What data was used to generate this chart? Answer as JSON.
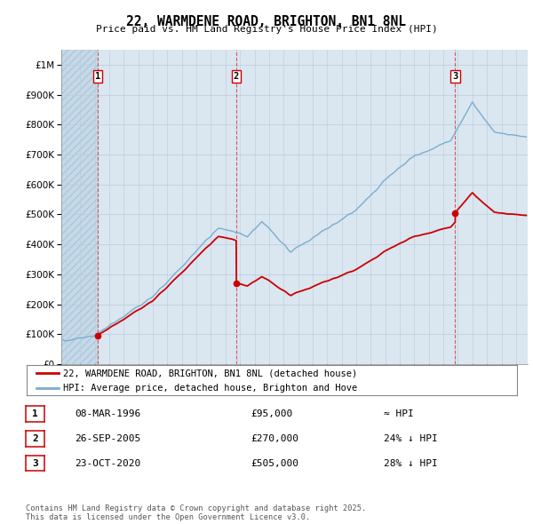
{
  "title": "22, WARMDENE ROAD, BRIGHTON, BN1 8NL",
  "subtitle": "Price paid vs. HM Land Registry's House Price Index (HPI)",
  "background_color": "#dae6f0",
  "hatch_color": "#c5d9e8",
  "sale_color": "#cc0000",
  "hpi_color": "#7aadcf",
  "vline_color": "#cc0000",
  "purchases": [
    {
      "date_num": 1996.19,
      "price": 95000,
      "label": "1"
    },
    {
      "date_num": 2005.74,
      "price": 270000,
      "label": "2"
    },
    {
      "date_num": 2020.81,
      "price": 505000,
      "label": "3"
    }
  ],
  "legend_entries": [
    "22, WARMDENE ROAD, BRIGHTON, BN1 8NL (detached house)",
    "HPI: Average price, detached house, Brighton and Hove"
  ],
  "table_rows": [
    {
      "num": "1",
      "date": "08-MAR-1996",
      "price": "£95,000",
      "rel": "≈ HPI"
    },
    {
      "num": "2",
      "date": "26-SEP-2005",
      "price": "£270,000",
      "rel": "24% ↓ HPI"
    },
    {
      "num": "3",
      "date": "23-OCT-2020",
      "price": "£505,000",
      "rel": "28% ↓ HPI"
    }
  ],
  "footer": "Contains HM Land Registry data © Crown copyright and database right 2025.\nThis data is licensed under the Open Government Licence v3.0.",
  "ylim": [
    0,
    1050000
  ],
  "xlim": [
    1993.7,
    2025.8
  ],
  "yticks": [
    0,
    100000,
    200000,
    300000,
    400000,
    500000,
    600000,
    700000,
    800000,
    900000,
    1000000
  ],
  "ytick_labels": [
    "£0",
    "£100K",
    "£200K",
    "£300K",
    "£400K",
    "£500K",
    "£600K",
    "£700K",
    "£800K",
    "£900K",
    "£1M"
  ]
}
